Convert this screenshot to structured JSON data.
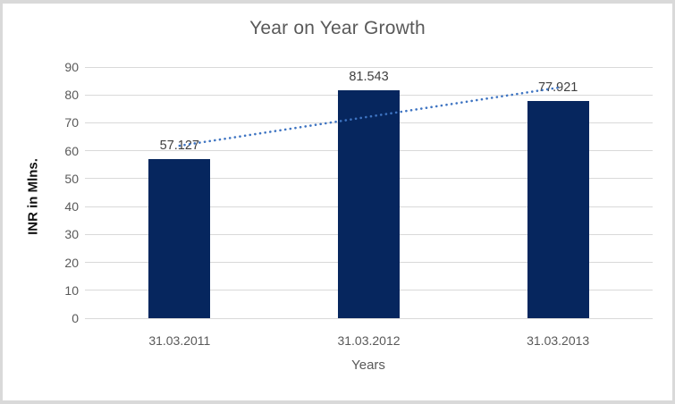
{
  "chart_data": {
    "type": "bar",
    "title": "Year on Year Growth",
    "xlabel": "Years",
    "ylabel": "INR in Mlns.",
    "categories": [
      "31.03.2011",
      "31.03.2012",
      "31.03.2013"
    ],
    "values": [
      57.127,
      81.543,
      77.921
    ],
    "data_labels": [
      "57.127",
      "81.543",
      "77.921"
    ],
    "ylim": [
      0,
      90
    ],
    "yticks": [
      0,
      10,
      20,
      30,
      40,
      50,
      60,
      70,
      80,
      90
    ],
    "grid": true,
    "legend": "none",
    "trendline": {
      "type": "linear",
      "style": "dotted"
    }
  },
  "colors": {
    "bar": "#06265e",
    "trendline": "#3e74c2",
    "gridline": "#d9d9d9",
    "frame_border": "#d9d9d9",
    "title_text": "#595959",
    "axis_text": "#595959",
    "data_label_text": "#404040",
    "y_axis_title_text": "#111111"
  }
}
